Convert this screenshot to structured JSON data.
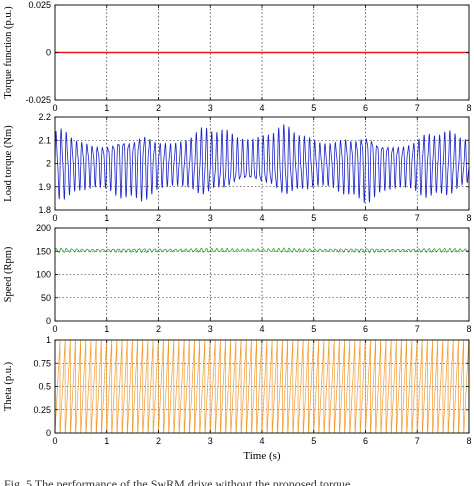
{
  "chart_data": [
    {
      "type": "line",
      "title": "",
      "xlabel": "",
      "ylabel": "Torque function (p.u.)",
      "xlim": [
        0,
        8
      ],
      "ylim": [
        -0.025,
        0.025
      ],
      "x_ticks": [
        "0",
        "1",
        "2",
        "3",
        "4",
        "5",
        "6",
        "7",
        "8"
      ],
      "y_ticks": [
        "-0.025",
        "0",
        "0.025"
      ],
      "grid": true,
      "series": [
        {
          "color": "#e8151d",
          "shape": "constant",
          "x": [
            0,
            8
          ],
          "y": [
            0,
            0
          ]
        }
      ]
    },
    {
      "type": "line",
      "title": "",
      "xlabel": "",
      "ylabel": "Load torque (Nm)",
      "xlim": [
        0,
        8
      ],
      "ylim": [
        1.8,
        2.2
      ],
      "x_ticks": [
        "0",
        "1",
        "2",
        "3",
        "4",
        "5",
        "6",
        "7",
        "8"
      ],
      "y_ticks": [
        "1.8",
        "1.9",
        "2",
        "2.1",
        "2.2"
      ],
      "grid": true,
      "series": [
        {
          "color": "#1a22c8",
          "shape": "oscillation",
          "mean": 2.0,
          "amplitude_min": 0.1,
          "amplitude_max": 0.17,
          "cycles": 80,
          "x": [
            0,
            8
          ]
        }
      ]
    },
    {
      "type": "line",
      "title": "",
      "xlabel": "",
      "ylabel": "Speed (Rpm)",
      "xlim": [
        0,
        8
      ],
      "ylim": [
        0,
        200
      ],
      "x_ticks": [
        "0",
        "1",
        "2",
        "3",
        "4",
        "5",
        "6",
        "7",
        "8"
      ],
      "y_ticks": [
        "0",
        "50",
        "100",
        "150",
        "200"
      ],
      "grid": true,
      "series": [
        {
          "color": "#3a9a3a",
          "shape": "oscillation",
          "mean": 152,
          "amplitude_min": 3,
          "amplitude_max": 5,
          "cycles": 80,
          "x": [
            0,
            8
          ]
        }
      ]
    },
    {
      "type": "line",
      "title": "",
      "xlabel": "Time (s)",
      "ylabel": "Theta (p.u.)",
      "xlim": [
        0,
        8
      ],
      "ylim": [
        0,
        1
      ],
      "x_ticks": [
        "0",
        "1",
        "2",
        "3",
        "4",
        "5",
        "6",
        "7",
        "8"
      ],
      "y_ticks": [
        "0",
        "0.25",
        "0.5",
        "0.75",
        "1"
      ],
      "grid": true,
      "series": [
        {
          "color": "#f39a2c",
          "shape": "sawtooth",
          "min": 0,
          "max": 1,
          "cycles": 80,
          "x": [
            0,
            8
          ]
        }
      ]
    }
  ],
  "caption": "Fig. 5 The performance of the SwRM drive without the proposed torque"
}
